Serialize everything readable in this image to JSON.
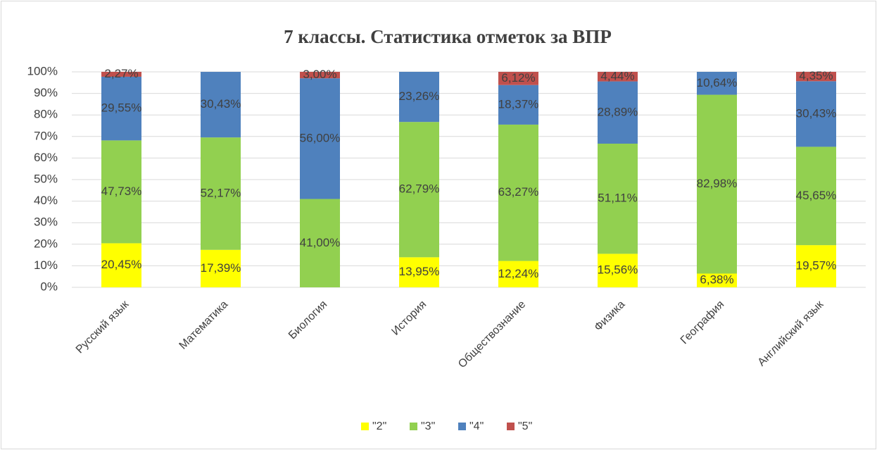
{
  "chart_data": {
    "type": "stacked_bar",
    "title": "7 классы. Статистика отметок за ВПР",
    "categories": [
      "Русский язык",
      "Математика",
      "Биология",
      "История",
      "Обществознание",
      "Физика",
      "География",
      "Английский язык"
    ],
    "series": [
      {
        "name": "\"2\"",
        "color": "#ffff00",
        "values": [
          20.45,
          17.39,
          null,
          13.95,
          12.24,
          15.56,
          6.38,
          19.57
        ],
        "value_labels": [
          "20,45%",
          "17,39%",
          null,
          "13,95%",
          "12,24%",
          "15,56%",
          "6,38%",
          "19,57%"
        ]
      },
      {
        "name": "\"3\"",
        "color": "#92d050",
        "values": [
          47.73,
          52.17,
          41.0,
          62.79,
          63.27,
          51.11,
          82.98,
          45.65
        ],
        "value_labels": [
          "47,73%",
          "52,17%",
          "41,00%",
          "62,79%",
          "63,27%",
          "51,11%",
          "82,98%",
          "45,65%"
        ]
      },
      {
        "name": "\"4\"",
        "color": "#4f81bd",
        "values": [
          29.55,
          30.43,
          56.0,
          23.26,
          18.37,
          28.89,
          10.64,
          30.43
        ],
        "value_labels": [
          "29,55%",
          "30,43%",
          "56,00%",
          "23,26%",
          "18,37%",
          "28,89%",
          "10,64%",
          "30,43%"
        ]
      },
      {
        "name": "\"5\"",
        "color": "#c0504d",
        "values": [
          2.27,
          null,
          3.0,
          null,
          6.12,
          4.44,
          null,
          4.35
        ],
        "value_labels": [
          "2,27%",
          null,
          "3,00%",
          null,
          "6,12%",
          "4,44%",
          null,
          "4,35%"
        ]
      }
    ],
    "ylim": [
      0,
      100
    ],
    "yticks": [
      {
        "value": 0,
        "label": "0%"
      },
      {
        "value": 10,
        "label": "10%"
      },
      {
        "value": 20,
        "label": "20%"
      },
      {
        "value": 30,
        "label": "30%"
      },
      {
        "value": 40,
        "label": "40%"
      },
      {
        "value": 50,
        "label": "50%"
      },
      {
        "value": 60,
        "label": "60%"
      },
      {
        "value": 70,
        "label": "70%"
      },
      {
        "value": 80,
        "label": "80%"
      },
      {
        "value": 90,
        "label": "90%"
      },
      {
        "value": 100,
        "label": "100%"
      }
    ],
    "grid": true,
    "legend": "bottom"
  }
}
